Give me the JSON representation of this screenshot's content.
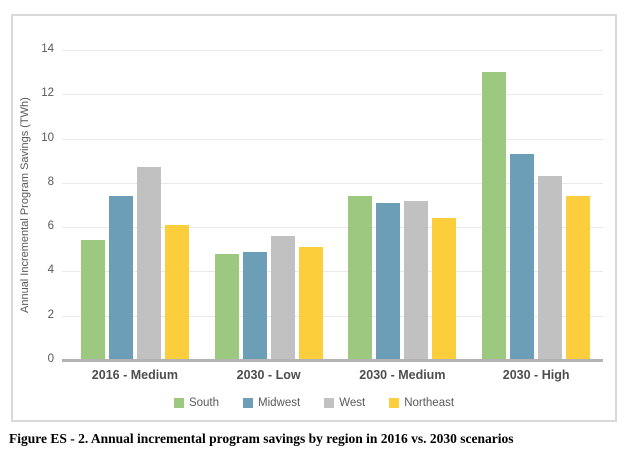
{
  "chart_data": {
    "type": "bar",
    "title": "",
    "xlabel": "",
    "ylabel": "Annual Incremental Program Savings (TWh)",
    "ylim": [
      0,
      14
    ],
    "yticks": [
      0,
      2,
      4,
      6,
      8,
      10,
      12,
      14
    ],
    "grid": true,
    "legend_position": "bottom",
    "categories": [
      "2016 - Medium",
      "2030 - Low",
      "2030 - Medium",
      "2030 - High"
    ],
    "series": [
      {
        "name": "South",
        "color": "#9cc87f",
        "values": [
          5.4,
          4.8,
          7.4,
          13.0
        ]
      },
      {
        "name": "Midwest",
        "color": "#6d9eb7",
        "values": [
          7.4,
          4.9,
          7.1,
          9.3
        ]
      },
      {
        "name": "West",
        "color": "#c1c1c1",
        "values": [
          8.7,
          5.6,
          7.2,
          8.3
        ]
      },
      {
        "name": "Northeast",
        "color": "#fdce3c",
        "values": [
          6.1,
          5.1,
          6.4,
          7.4
        ]
      }
    ]
  },
  "caption": "Figure ES - 2. Annual incremental program savings by region in 2016 vs. 2030 scenarios",
  "colors": {
    "gridline": "#e9e9e9",
    "axis_line": "#b3b3b3",
    "border": "#d9d9d9",
    "tick_text": "#595959",
    "category_text": "#4d4d4d",
    "background": "#ffffff"
  }
}
